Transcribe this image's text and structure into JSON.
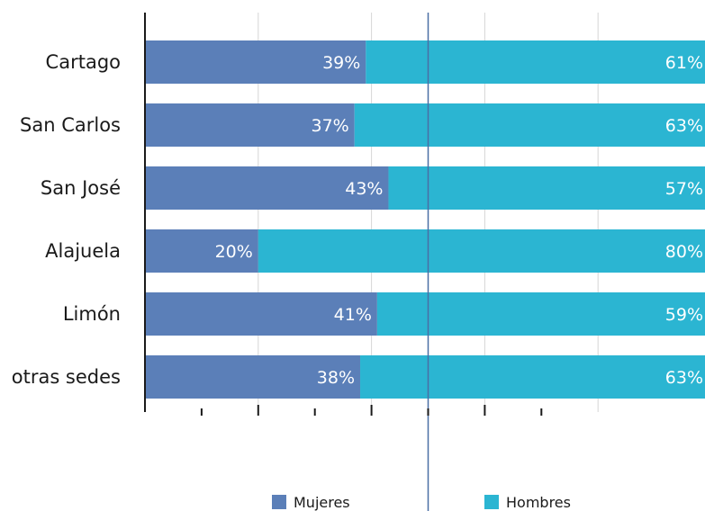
{
  "chart_data": {
    "type": "bar",
    "orientation": "horizontal",
    "stacked": true,
    "title": "",
    "xlabel": "",
    "ylabel": "",
    "xlim": [
      0,
      100
    ],
    "grid": true,
    "legend_position": "bottom",
    "categories": [
      "Cartago",
      "San Carlos",
      "San José",
      "Alajuela",
      "Limón",
      "otras sedes"
    ],
    "series": [
      {
        "name": "Mujeres",
        "color": "#5b7fb8",
        "values": [
          39,
          37,
          43,
          20,
          41,
          38
        ],
        "labels": [
          "39%",
          "37%",
          "43%",
          "20%",
          "41%",
          "38%"
        ]
      },
      {
        "name": "Hombres",
        "color": "#2bb5d2",
        "values": [
          61,
          63,
          57,
          80,
          59,
          63
        ],
        "labels": [
          "61%",
          "63%",
          "57%",
          "80%",
          "59%",
          "63%"
        ]
      }
    ],
    "reference_line": 50
  }
}
